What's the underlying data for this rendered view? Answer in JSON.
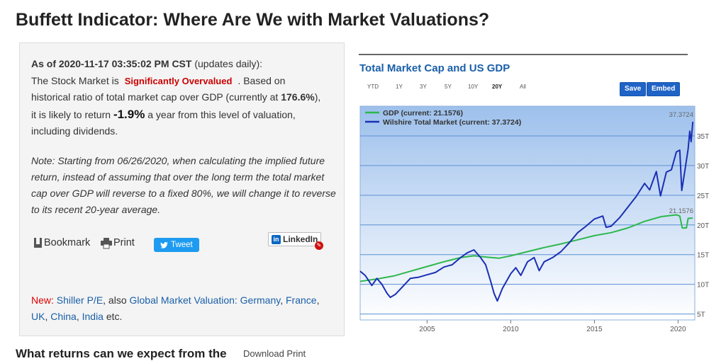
{
  "page": {
    "title": "Buffett Indicator: Where Are We with Market Valuations?"
  },
  "valuation": {
    "as_of_label": "As of 2020-11-17 03:35:02 PM CST",
    "updates_note": "(updates daily):",
    "stock_market_prefix": "The Stock Market is",
    "status": "Significantly Overvalued",
    "based_on": ". Based on",
    "ratio_text": "historical ratio of total market cap over GDP (currently at",
    "ratio_value": "176.6%",
    "ratio_close": "),",
    "return_prefix": "it is likely to return",
    "return_value": "-1.9%",
    "return_suffix": "a year from this level of valuation,",
    "dividends": "including dividends."
  },
  "note": {
    "text": "Note: Starting from 06/26/2020, when calculating the implied future return, instead of assuming that over the long term the total market cap over GDP will reverse to a fixed 80%, we will change it to reverse to its recent 20-year average."
  },
  "share": {
    "bookmark": "Bookmark",
    "print": "Print",
    "tweet": "Tweet",
    "linkedin": "LinkedIn"
  },
  "links": {
    "new_label": "New:",
    "shiller": "Shiller P/E",
    "also": ", also",
    "global": "Global Market Valuation:",
    "germany": "Germany",
    "comma1": ",",
    "france": "France",
    "comma2": ",",
    "uk": "UK",
    "comma3": ",",
    "china": "China",
    "comma4": ",",
    "india": "India",
    "etc": "etc."
  },
  "bottom": {
    "heading_cut": "What returns can we expect from the",
    "tools_cut": "Download   Print"
  },
  "chart_header": {
    "title": "Total Market Cap and US GDP",
    "ranges": [
      "YTD",
      "1Y",
      "3Y",
      "5Y",
      "10Y",
      "20Y",
      "All"
    ],
    "active_range": "20Y",
    "save": "Save",
    "embed": "Embed"
  },
  "chart_data": {
    "type": "line",
    "title": "Total Market Cap and US GDP",
    "x_range": [
      2001.0,
      2021.0
    ],
    "ylim": [
      4,
      40
    ],
    "y_ticks": [
      5,
      10,
      15,
      20,
      25,
      30,
      35
    ],
    "y_tick_labels": [
      "5T",
      "10T",
      "15T",
      "20T",
      "25T",
      "30T",
      "35T"
    ],
    "x_ticks": [
      2005,
      2010,
      2015,
      2020
    ],
    "x_tick_labels": [
      "2005",
      "2010",
      "2015",
      "2020"
    ],
    "legend": "top-left",
    "grid": true,
    "series": [
      {
        "name": "GDP (current: 21.1576)",
        "color": "#2db84d",
        "end_label": "21.1576",
        "points": [
          [
            2001.0,
            10.5
          ],
          [
            2002.0,
            10.9
          ],
          [
            2003.0,
            11.4
          ],
          [
            2004.0,
            12.2
          ],
          [
            2005.0,
            13.0
          ],
          [
            2006.0,
            13.8
          ],
          [
            2007.0,
            14.5
          ],
          [
            2007.8,
            14.8
          ],
          [
            2008.5,
            14.6
          ],
          [
            2009.3,
            14.4
          ],
          [
            2010.0,
            14.8
          ],
          [
            2011.0,
            15.5
          ],
          [
            2012.0,
            16.2
          ],
          [
            2013.0,
            16.8
          ],
          [
            2014.0,
            17.5
          ],
          [
            2015.0,
            18.2
          ],
          [
            2016.0,
            18.7
          ],
          [
            2017.0,
            19.5
          ],
          [
            2018.0,
            20.6
          ],
          [
            2019.0,
            21.4
          ],
          [
            2019.9,
            21.7
          ],
          [
            2020.1,
            21.5
          ],
          [
            2020.25,
            19.5
          ],
          [
            2020.5,
            19.5
          ],
          [
            2020.6,
            21.1
          ],
          [
            2020.88,
            21.16
          ]
        ]
      },
      {
        "name": "Wilshire Total Market (current: 37.3724)",
        "color": "#1b2fb5",
        "end_label": "37.3724",
        "points": [
          [
            2001.0,
            12.2
          ],
          [
            2001.3,
            11.5
          ],
          [
            2001.7,
            9.8
          ],
          [
            2002.0,
            11.0
          ],
          [
            2002.3,
            10.0
          ],
          [
            2002.6,
            8.5
          ],
          [
            2002.8,
            7.8
          ],
          [
            2003.1,
            8.3
          ],
          [
            2003.5,
            9.5
          ],
          [
            2004.0,
            11.0
          ],
          [
            2004.5,
            11.2
          ],
          [
            2005.0,
            11.6
          ],
          [
            2005.5,
            12.0
          ],
          [
            2006.0,
            12.9
          ],
          [
            2006.5,
            13.3
          ],
          [
            2007.0,
            14.5
          ],
          [
            2007.4,
            15.3
          ],
          [
            2007.8,
            15.8
          ],
          [
            2008.2,
            14.5
          ],
          [
            2008.5,
            13.3
          ],
          [
            2008.8,
            10.5
          ],
          [
            2009.0,
            8.5
          ],
          [
            2009.2,
            7.2
          ],
          [
            2009.5,
            9.3
          ],
          [
            2010.0,
            11.8
          ],
          [
            2010.3,
            12.8
          ],
          [
            2010.6,
            11.5
          ],
          [
            2011.0,
            13.8
          ],
          [
            2011.4,
            14.5
          ],
          [
            2011.7,
            12.3
          ],
          [
            2012.0,
            13.8
          ],
          [
            2012.5,
            14.5
          ],
          [
            2013.0,
            15.5
          ],
          [
            2013.5,
            17.0
          ],
          [
            2014.0,
            18.7
          ],
          [
            2014.5,
            19.8
          ],
          [
            2015.0,
            21.0
          ],
          [
            2015.5,
            21.5
          ],
          [
            2015.7,
            19.6
          ],
          [
            2016.0,
            19.8
          ],
          [
            2016.5,
            21.2
          ],
          [
            2017.0,
            23.0
          ],
          [
            2017.5,
            24.8
          ],
          [
            2018.0,
            27.0
          ],
          [
            2018.3,
            25.9
          ],
          [
            2018.7,
            29.0
          ],
          [
            2018.95,
            24.9
          ],
          [
            2019.3,
            28.9
          ],
          [
            2019.6,
            29.3
          ],
          [
            2019.9,
            32.3
          ],
          [
            2020.1,
            32.6
          ],
          [
            2020.22,
            25.8
          ],
          [
            2020.4,
            29.0
          ],
          [
            2020.6,
            32.8
          ],
          [
            2020.7,
            35.8
          ],
          [
            2020.78,
            34.0
          ],
          [
            2020.88,
            37.37
          ]
        ]
      }
    ]
  }
}
